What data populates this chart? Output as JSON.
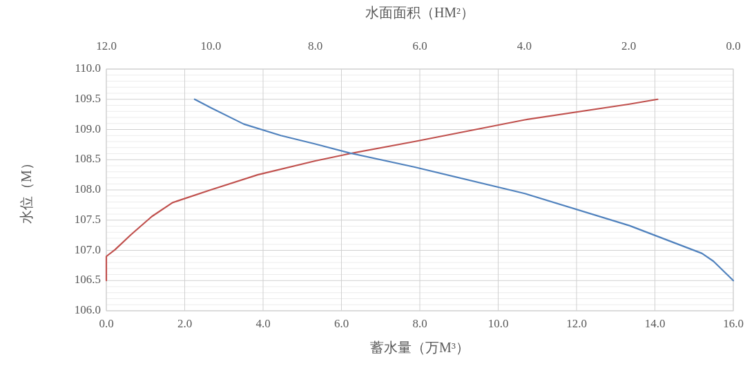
{
  "chart_data": {
    "type": "line",
    "xlabel": "蓄水量（万M³）",
    "ylabel": "水位（M）",
    "x2label": "水面面积（HM²）",
    "grid": true,
    "xlim": [
      0,
      16
    ],
    "xticks": [
      {
        "value": 0,
        "label": "0.0"
      },
      {
        "value": 2,
        "label": "2.0"
      },
      {
        "value": 4,
        "label": "4.0"
      },
      {
        "value": 6,
        "label": "6.0"
      },
      {
        "value": 8,
        "label": "8.0"
      },
      {
        "value": 10,
        "label": "10.0"
      },
      {
        "value": 12,
        "label": "12.0"
      },
      {
        "value": 14,
        "label": "14.0"
      },
      {
        "value": 16,
        "label": "16.0"
      }
    ],
    "x2lim": [
      12,
      0
    ],
    "x2ticks": [
      {
        "value": 12,
        "label": "12.0"
      },
      {
        "value": 10,
        "label": "10.0"
      },
      {
        "value": 8,
        "label": "8.0"
      },
      {
        "value": 6,
        "label": "6.0"
      },
      {
        "value": 4,
        "label": "4.0"
      },
      {
        "value": 2,
        "label": "2.0"
      },
      {
        "value": 0,
        "label": "0.0"
      }
    ],
    "ylim": [
      106,
      110
    ],
    "yticks": [
      {
        "value": 106,
        "label": "106.0"
      },
      {
        "value": 106.1,
        "label": null
      },
      {
        "value": 106.2,
        "label": null
      },
      {
        "value": 106.3,
        "label": null
      },
      {
        "value": 106.4,
        "label": null
      },
      {
        "value": 106.5,
        "label": "106.5"
      },
      {
        "value": 106.6,
        "label": null
      },
      {
        "value": 106.7,
        "label": null
      },
      {
        "value": 106.8,
        "label": null
      },
      {
        "value": 106.9,
        "label": null
      },
      {
        "value": 107,
        "label": "107.0"
      },
      {
        "value": 107.1,
        "label": null
      },
      {
        "value": 107.2,
        "label": null
      },
      {
        "value": 107.3,
        "label": null
      },
      {
        "value": 107.4,
        "label": null
      },
      {
        "value": 107.5,
        "label": "107.5"
      },
      {
        "value": 107.6,
        "label": null
      },
      {
        "value": 107.7,
        "label": null
      },
      {
        "value": 107.8,
        "label": null
      },
      {
        "value": 107.9,
        "label": null
      },
      {
        "value": 108,
        "label": "108.0"
      },
      {
        "value": 108.1,
        "label": null
      },
      {
        "value": 108.2,
        "label": null
      },
      {
        "value": 108.3,
        "label": null
      },
      {
        "value": 108.4,
        "label": null
      },
      {
        "value": 108.5,
        "label": "108.5"
      },
      {
        "value": 108.6,
        "label": null
      },
      {
        "value": 108.7,
        "label": null
      },
      {
        "value": 108.8,
        "label": null
      },
      {
        "value": 108.9,
        "label": null
      },
      {
        "value": 109,
        "label": "109.0"
      },
      {
        "value": 109.1,
        "label": null
      },
      {
        "value": 109.2,
        "label": null
      },
      {
        "value": 109.3,
        "label": null
      },
      {
        "value": 109.4,
        "label": null
      },
      {
        "value": 109.5,
        "label": "109.5"
      },
      {
        "value": 109.6,
        "label": null
      },
      {
        "value": 109.7,
        "label": null
      },
      {
        "value": 109.8,
        "label": null
      },
      {
        "value": 109.9,
        "label": null
      },
      {
        "value": 110,
        "label": "110.0"
      }
    ],
    "series": [
      {
        "color": "#c0504d",
        "x": [
          0,
          0,
          0.22,
          0.63,
          1.16,
          1.69,
          2.66,
          3.86,
          5.33,
          6.21,
          7.86,
          10.68,
          13.35,
          14.07
        ],
        "values": [
          106.5,
          106.9,
          107.01,
          107.26,
          107.56,
          107.79,
          108.0,
          108.25,
          108.48,
          108.6,
          108.8,
          109.16,
          109.42,
          109.5
        ]
      },
      {
        "color": "#4f81bd",
        "axis": "x2",
        "x": [
          10.31,
          10.0,
          9.37,
          8.66,
          8.0,
          7.34,
          6.11,
          3.99,
          1.99,
          0.6,
          0.38,
          0
        ],
        "values": [
          109.5,
          109.36,
          109.09,
          108.9,
          108.76,
          108.61,
          108.38,
          107.94,
          107.41,
          106.95,
          106.82,
          106.5
        ]
      }
    ]
  }
}
